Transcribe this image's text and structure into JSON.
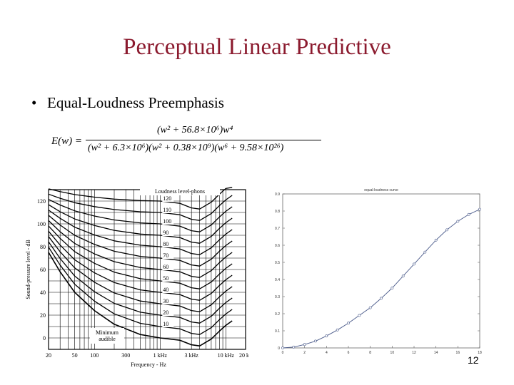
{
  "slide": {
    "title": "Perceptual Linear Predictive",
    "bullet": "Equal-Loudness Preemphasis",
    "bullet_marker": "•",
    "page_number": "12"
  },
  "formula": {
    "lhs": "E(w) =",
    "numerator": "(w² + 56.8×10⁶)w⁴",
    "denominator": "(w² + 6.3×10⁶)(w² + 0.38×10⁹)(w⁶ + 9.58×10²⁶)"
  },
  "chart_data": [
    {
      "type": "line",
      "title": "Loudness level-phons",
      "xlabel": "Frequency - Hz",
      "ylabel": "Sound-pressure level - dB",
      "x_tick_labels": [
        "20",
        "50",
        "100",
        "300",
        "1 kHz",
        "3 kHz",
        "10 kHz",
        "20 k"
      ],
      "y_tick_labels": [
        "0",
        "20",
        "40",
        "60",
        "80",
        "100",
        "120"
      ],
      "ylim": [
        -10,
        130
      ],
      "series_labels": [
        "10",
        "20",
        "30",
        "40",
        "50",
        "60",
        "70",
        "80",
        "90",
        "100",
        "110",
        "120"
      ],
      "annotation": "Minimum audible",
      "grid": true
    },
    {
      "type": "line",
      "title": "equal-loudness curve",
      "x": [
        0,
        1,
        2,
        3,
        4,
        5,
        6,
        7,
        8,
        9,
        10,
        11,
        12,
        13,
        14,
        15,
        16,
        17,
        18
      ],
      "y": [
        0.0,
        0.005,
        0.02,
        0.04,
        0.07,
        0.105,
        0.145,
        0.19,
        0.235,
        0.29,
        0.35,
        0.42,
        0.49,
        0.56,
        0.63,
        0.69,
        0.74,
        0.78,
        0.81
      ],
      "xlim": [
        0,
        18
      ],
      "ylim": [
        0,
        0.9
      ],
      "x_tick_labels": [
        "0",
        "2",
        "4",
        "6",
        "8",
        "10",
        "12",
        "14",
        "16",
        "18"
      ],
      "y_tick_labels": [
        "0",
        "0.1",
        "0.2",
        "0.3",
        "0.4",
        "0.5",
        "0.6",
        "0.7",
        "0.8",
        "0.9"
      ],
      "grid": false,
      "marker": "circle"
    }
  ]
}
